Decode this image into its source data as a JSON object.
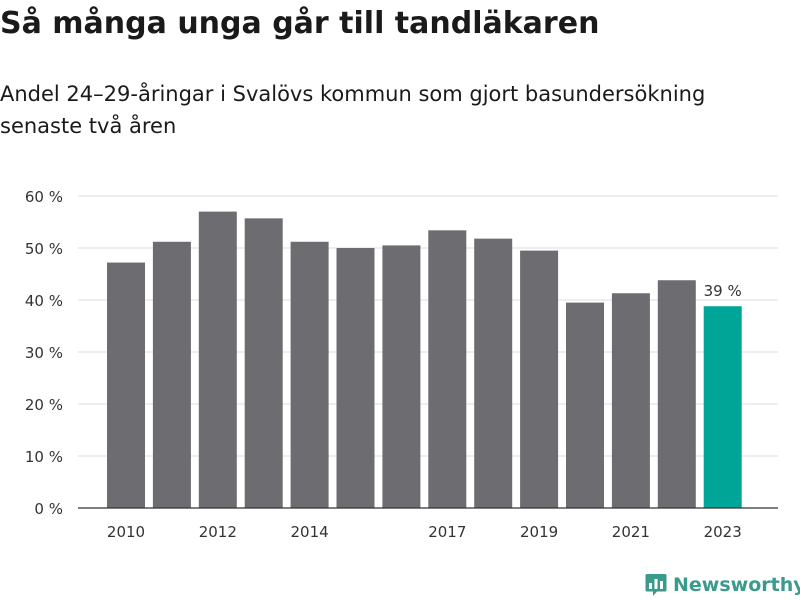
{
  "header": {
    "title": "Så många unga går till tandläkaren",
    "subtitle": "Andel 24–29-åringar i Svalövs kommun som gjort basundersökning senaste två åren"
  },
  "brand": {
    "name": "Newsworthy",
    "color": "#3a9a8c"
  },
  "colors": {
    "bar": "#6d6c71",
    "highlight": "#00a598",
    "grid": "#dddddd",
    "axis": "#333333",
    "text": "#333333"
  },
  "chart_data": {
    "type": "bar",
    "categories": [
      "2010",
      "2011",
      "2012",
      "2013",
      "2014",
      "2015",
      "2016",
      "2017",
      "2018",
      "2019",
      "2020",
      "2021",
      "2022",
      "2023"
    ],
    "x_tick_labels": [
      "2010",
      "",
      "2012",
      "",
      "2014",
      "",
      "",
      "2017",
      "",
      "2019",
      "",
      "2021",
      "",
      "2023"
    ],
    "values": [
      47.2,
      51.2,
      57.0,
      55.7,
      51.2,
      50.0,
      50.5,
      53.4,
      51.8,
      49.5,
      39.5,
      41.3,
      43.8,
      38.8
    ],
    "highlight_index": 13,
    "annotation": {
      "index": 13,
      "text": "39 %"
    },
    "y_ticks": [
      0,
      10,
      20,
      30,
      40,
      50,
      60
    ],
    "y_tick_labels": [
      "0 %",
      "10 %",
      "20 %",
      "30 %",
      "40 %",
      "50 %",
      "60 %"
    ],
    "ylim": [
      0,
      60
    ],
    "grid": true
  }
}
